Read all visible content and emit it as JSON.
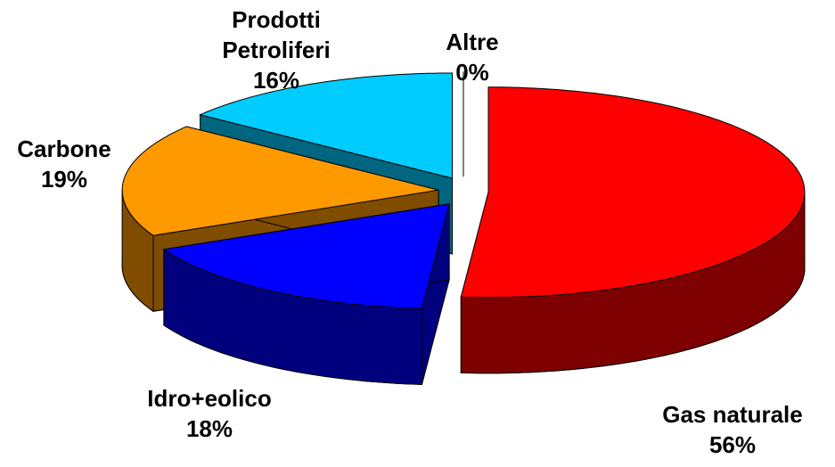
{
  "chart_data": {
    "type": "pie",
    "categories": [
      "Gas naturale",
      "Idro+eolico",
      "Carbone",
      "Prodotti Petroliferi",
      "Altre"
    ],
    "values": [
      56,
      18,
      19,
      16,
      0
    ],
    "value_labels": [
      "56%",
      "18%",
      "19%",
      "16%",
      "0%"
    ],
    "colors": [
      "#ff0000",
      "#0000ff",
      "#ff9900",
      "#00ccff",
      "#00ff00"
    ]
  }
}
